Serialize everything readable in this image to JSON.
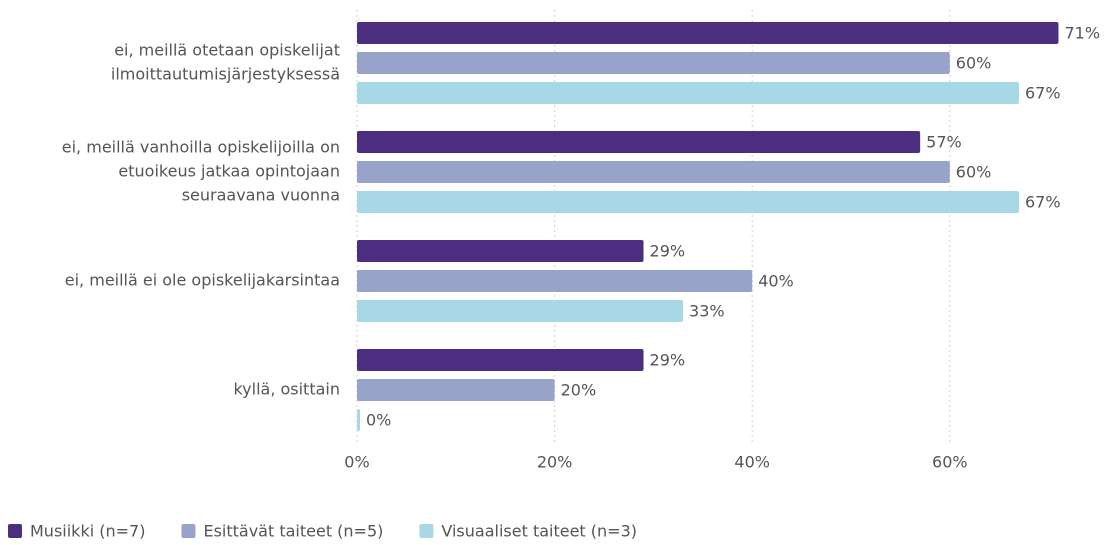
{
  "chart_data": {
    "type": "hbar",
    "categories": [
      [
        "ei, meillä otetaan opiskelijat",
        "ilmoittautumisjärjestyksessä"
      ],
      [
        "ei, meillä vanhoilla opiskelijoilla on",
        "etuoikeus jatkaa opintojaan",
        "seuraavana vuonna"
      ],
      [
        "ei, meillä ei ole opiskelijakarsintaa"
      ],
      [
        "kyllä, osittain"
      ]
    ],
    "series": [
      {
        "name": "Musiikki (n=7)",
        "color": "#4b2e7f",
        "values": [
          71,
          57,
          29,
          29
        ],
        "value_labels": [
          "71%",
          "57%",
          "29%",
          "29%"
        ]
      },
      {
        "name": "Esittävät taiteet (n=5)",
        "color": "#97a3c8",
        "values": [
          60,
          60,
          40,
          20
        ],
        "value_labels": [
          "60%",
          "60%",
          "40%",
          "20%"
        ]
      },
      {
        "name": "Visuaaliset taiteet (n=3)",
        "color": "#a8d8e6",
        "values": [
          67,
          67,
          33,
          0
        ],
        "value_labels": [
          "67%",
          "67%",
          "33%",
          "0%"
        ]
      }
    ],
    "xlim": [
      0,
      75
    ],
    "xticks": [
      {
        "value": 0,
        "label": "0%"
      },
      {
        "value": 20,
        "label": "20%"
      },
      {
        "value": 40,
        "label": "40%"
      },
      {
        "value": 60,
        "label": "60%"
      }
    ],
    "grid": true,
    "legend": "bottom-left"
  }
}
